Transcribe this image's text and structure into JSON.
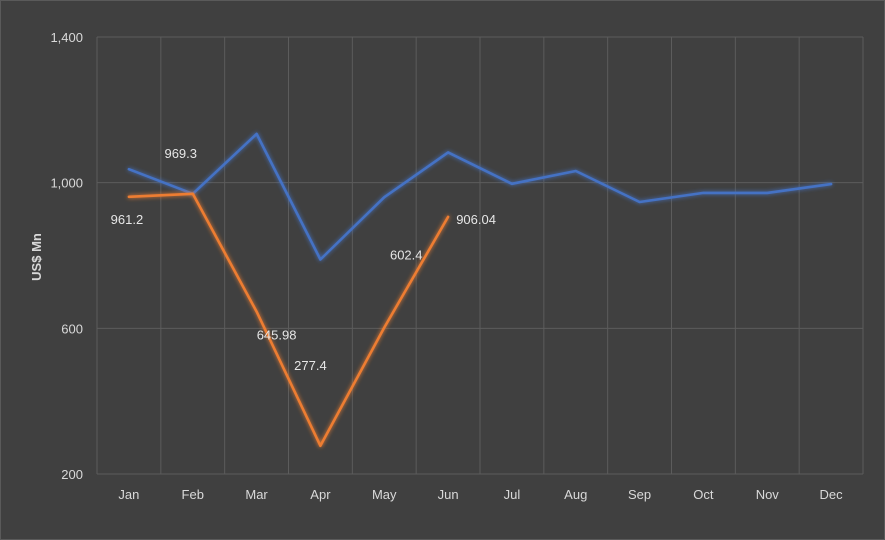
{
  "chart_data": {
    "type": "line",
    "title": "",
    "xlabel": "",
    "ylabel": "US$ Mn",
    "categories": [
      "Jan",
      "Feb",
      "Mar",
      "Apr",
      "May",
      "Jun",
      "Jul",
      "Aug",
      "Sep",
      "Oct",
      "Nov",
      "Dec"
    ],
    "ylim": [
      200,
      1400
    ],
    "yticks": [
      200,
      600,
      1000,
      1400
    ],
    "ytick_labels": [
      "200",
      "600",
      "1,000",
      "1,400"
    ],
    "grid": true,
    "legend": "none",
    "series": [
      {
        "color": "#4472c4",
        "values": [
          1037,
          969.3,
          1134,
          789,
          960,
          1083,
          997,
          1032,
          947,
          972,
          972,
          996
        ],
        "labels": [
          null,
          "969.3",
          null,
          null,
          null,
          null,
          null,
          null,
          null,
          null,
          null,
          null
        ]
      },
      {
        "color": "#ed7d31",
        "values": [
          961.2,
          969.3,
          645.98,
          277.4,
          602.4,
          906.04,
          null,
          null,
          null,
          null,
          null,
          null
        ],
        "labels": [
          "961.2",
          null,
          "645.98",
          "277.4",
          "602.4",
          "906.04",
          null,
          null,
          null,
          null,
          null,
          null
        ]
      }
    ]
  }
}
